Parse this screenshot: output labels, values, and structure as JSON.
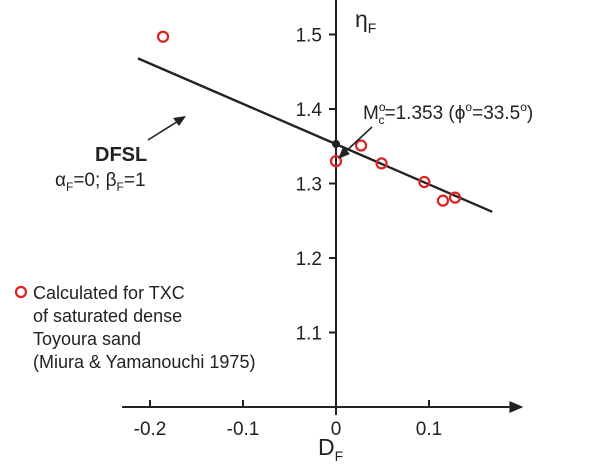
{
  "chart_data": {
    "type": "scatter",
    "x_label_base": "D",
    "x_label_sub": "F",
    "y_label_base": "η",
    "y_label_sub": "F",
    "xlim": [
      -0.23,
      0.18
    ],
    "ylim": [
      0.96,
      1.555
    ],
    "x_ticks": [
      -0.2,
      -0.1,
      0,
      0.1
    ],
    "x_tick_labels": [
      "-0.2",
      "-0.1",
      "0",
      "0.1"
    ],
    "y_ticks": [
      1.1,
      1.2,
      1.3,
      1.4,
      1.5
    ],
    "y_tick_labels": [
      "1.1",
      "1.2",
      "1.3",
      "1.4",
      "1.5"
    ],
    "series": [
      {
        "marker": "open-circle",
        "color": "#e02020",
        "points": [
          {
            "x": -0.186,
            "y": 1.497
          },
          {
            "x": 0.0,
            "y": 1.33
          },
          {
            "x": 0.027,
            "y": 1.351
          },
          {
            "x": 0.049,
            "y": 1.327
          },
          {
            "x": 0.095,
            "y": 1.302
          },
          {
            "x": 0.115,
            "y": 1.277
          },
          {
            "x": 0.128,
            "y": 1.281
          }
        ]
      }
    ],
    "line": {
      "x_start": -0.213,
      "y_start": 1.468,
      "x_end": 0.168,
      "y_end": 1.262,
      "color": "#222222"
    },
    "intersection_point": {
      "x": 0.0,
      "y": 1.353
    },
    "annotations": {
      "dfsl_title": "DFSL",
      "dfsl_params": {
        "a_sym": "α",
        "a_sub": "F",
        "a_val": "=0; ",
        "b_sym": "β",
        "b_sub": "F",
        "b_val": "=1"
      },
      "mc": {
        "base": "M",
        "sup": "o",
        "sub": "c",
        "eq": "=1.353 (",
        "phi": "ϕ",
        "phi_sup": "o",
        "phi_eq": "=33.5",
        "phi_sup2": "o",
        "close": ")"
      },
      "legend_lines": [
        "Calculated for TXC",
        "of saturated dense",
        "Toyoura sand",
        "(Miura & Yamanouchi 1975)"
      ]
    }
  }
}
